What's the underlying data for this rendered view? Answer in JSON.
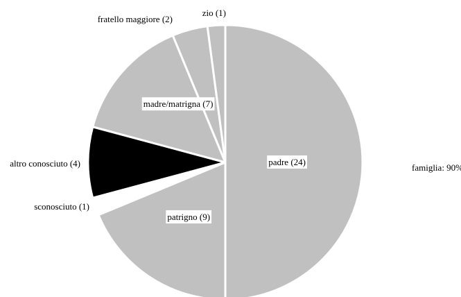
{
  "chart_data": {
    "type": "pie",
    "start_angle_deg": 0,
    "direction": "clockwise",
    "slices": [
      {
        "label": "padre (24)",
        "value": 24,
        "color": "#c0c0c0"
      },
      {
        "label": "patrigno (9)",
        "value": 9,
        "color": "#c0c0c0"
      },
      {
        "label": "sconosciuto (1)",
        "value": 1,
        "color": "#ffffff"
      },
      {
        "label": "altro conosciuto (4)",
        "value": 4,
        "color": "#000000"
      },
      {
        "label": "madre/matrigna (7)",
        "value": 7,
        "color": "#c0c0c0"
      },
      {
        "label": "fratello maggiore (2)",
        "value": 2,
        "color": "#c0c0c0"
      },
      {
        "label": "zio (1)",
        "value": 1,
        "color": "#c0c0c0"
      }
    ],
    "annotation": "famiglia: 90%",
    "separator_color": "#ffffff",
    "title": "",
    "legend": "none"
  }
}
